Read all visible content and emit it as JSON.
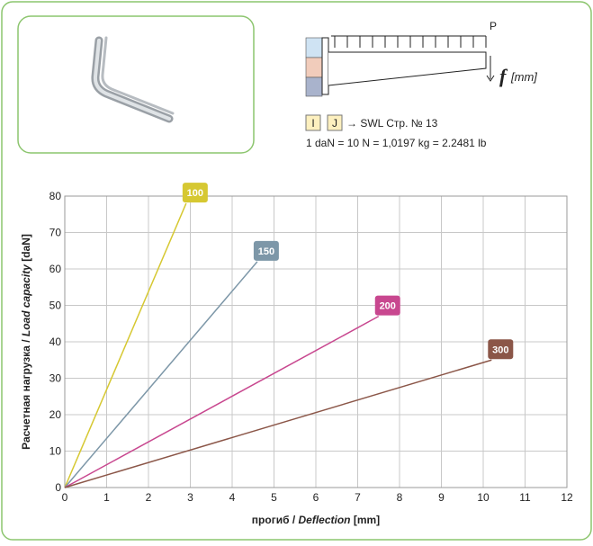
{
  "header": {
    "load": "P",
    "deflection_symbol": "f",
    "deflection_unit": "[mm]",
    "profile_i": "I",
    "profile_j": "J",
    "reference": "→ SWL Стр. № 13",
    "conversion": "1 daN = 10 N = 1,0197 kg = 2.2481 lb"
  },
  "chart_data": {
    "type": "line",
    "xlabel": [
      "прогиб / ",
      "Deflection",
      " [mm]"
    ],
    "ylabel": [
      "Расчетная нагрузка / ",
      "Load capacity",
      " [daN]"
    ],
    "xlim": [
      0,
      12
    ],
    "xticks": [
      0,
      1,
      2,
      3,
      4,
      5,
      6,
      7,
      8,
      9,
      10,
      11,
      12
    ],
    "ylim": [
      0,
      80
    ],
    "yticks": [
      0,
      10,
      20,
      30,
      40,
      50,
      60,
      70,
      80
    ],
    "grid": true,
    "series": [
      {
        "name": "100",
        "color": "#d6c832",
        "x": [
          0,
          2.9
        ],
        "values": [
          0,
          78
        ]
      },
      {
        "name": "150",
        "color": "#7d97a8",
        "x": [
          0,
          4.6
        ],
        "values": [
          0,
          62
        ]
      },
      {
        "name": "200",
        "color": "#c8478f",
        "x": [
          0,
          7.5
        ],
        "values": [
          0,
          47
        ]
      },
      {
        "name": "300",
        "color": "#8b5648",
        "x": [
          0,
          10.2
        ],
        "values": [
          0,
          35
        ]
      }
    ]
  }
}
